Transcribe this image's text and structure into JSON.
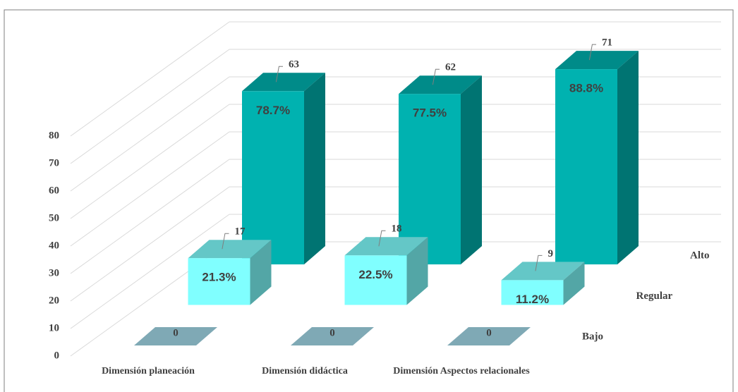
{
  "chart_data": {
    "type": "bar3d",
    "categories": [
      "Dimensión planeación",
      "Dimensión didáctica",
      "Dimensión Aspectos relacionales"
    ],
    "series": [
      {
        "name": "Bajo",
        "values": [
          0,
          0,
          0
        ],
        "color": "#7fa9b5"
      },
      {
        "name": "Regular",
        "values": [
          17,
          18,
          9
        ],
        "color": "#80ffff",
        "percent_labels": [
          "21.3%",
          "22.5%",
          "11.2%"
        ]
      },
      {
        "name": "Alto",
        "values": [
          63,
          62,
          71
        ],
        "color": "#00b2b0",
        "percent_labels": [
          "78.7%",
          "77.5%",
          "88.8%"
        ]
      }
    ],
    "ylim": [
      0,
      80
    ],
    "yticks": [
      0,
      10,
      20,
      30,
      40,
      50,
      60,
      70,
      80
    ],
    "grid": true
  }
}
